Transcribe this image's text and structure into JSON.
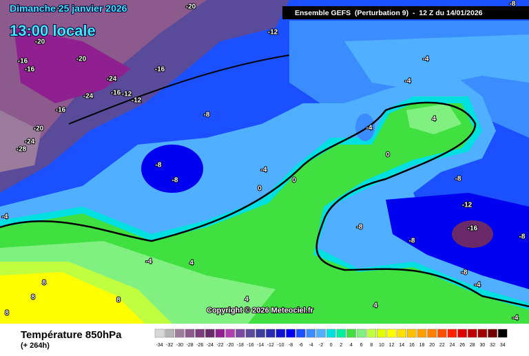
{
  "header": {
    "date": "Dimanche 25 janvier 2026",
    "time": "13:00 locale",
    "model": "Ensemble GEFS  (Perturbation 9)  -  12 Z du 14/01/2026"
  },
  "map": {
    "labels": [
      -20,
      -20,
      -12,
      -20,
      -16,
      -16,
      -20,
      -16,
      -24,
      -16,
      -12,
      -12,
      -24,
      -16,
      -8,
      -20,
      -24,
      -28,
      -4,
      -4,
      4,
      -4,
      0,
      -8,
      -8,
      -4,
      0,
      0,
      -8,
      -12,
      -16,
      -8,
      -8,
      -8,
      -4,
      -4,
      4,
      8,
      8,
      8,
      8,
      4,
      4,
      -8,
      -4,
      -4,
      -8
    ]
  },
  "footer": {
    "title": "Température 850hPa",
    "lead": "(+ 264h)",
    "copyright": "Copyright © 2026 Meteociel.fr"
  },
  "legend": {
    "values": [
      -34,
      -32,
      -30,
      -28,
      -26,
      -24,
      -22,
      -20,
      -18,
      -16,
      -14,
      -12,
      -10,
      -8,
      -6,
      -4,
      -2,
      0,
      2,
      4,
      6,
      8,
      10,
      12,
      14,
      16,
      18,
      20,
      22,
      24,
      26,
      28,
      30,
      32,
      34
    ],
    "colors": [
      "#d8d8d8",
      "#b4b4b4",
      "#9c7c9c",
      "#8c5a8c",
      "#7a3c7a",
      "#6a2a6a",
      "#902090",
      "#b040b0",
      "#7a4aa0",
      "#5a4a9a",
      "#3c3c9c",
      "#2a2ab0",
      "#1010d0",
      "#0000f0",
      "#1a50ff",
      "#3a8cff",
      "#50b0ff",
      "#00e0e0",
      "#00f0a0",
      "#40e040",
      "#80f080",
      "#c0ff40",
      "#e0ff00",
      "#ffff00",
      "#ffe000",
      "#ffc000",
      "#ffa000",
      "#ff8000",
      "#ff5000",
      "#ff2000",
      "#e00000",
      "#c00000",
      "#a00000",
      "#700000",
      "#000000"
    ]
  }
}
